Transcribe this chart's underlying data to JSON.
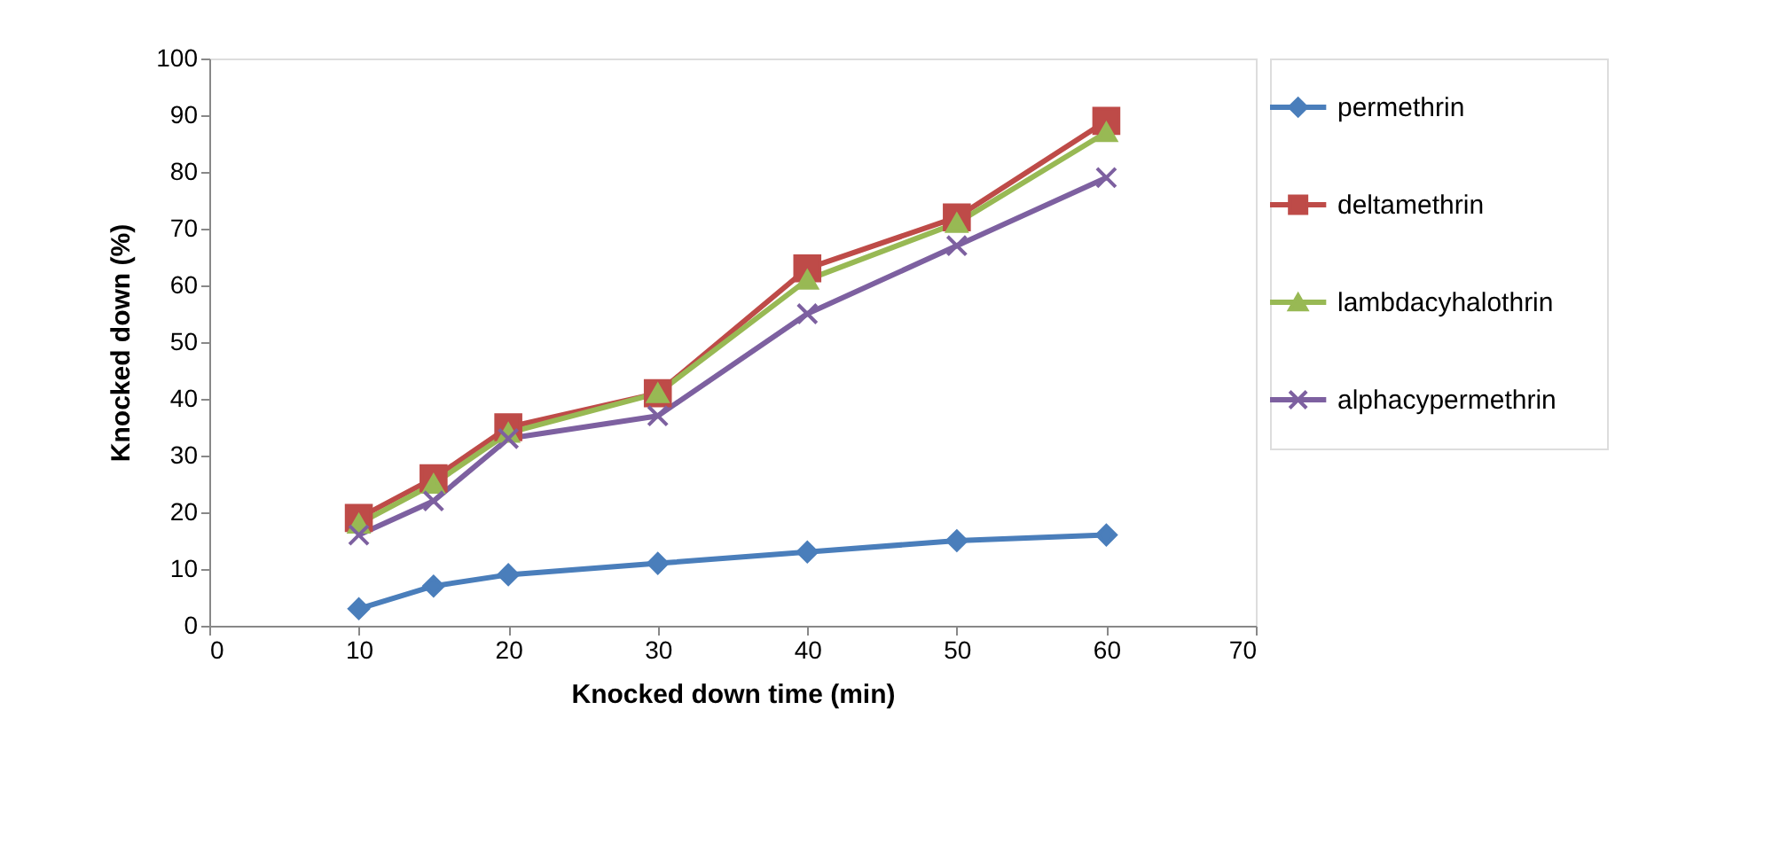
{
  "chart_data": {
    "type": "line",
    "xlabel": "Knocked down time (min)",
    "ylabel": "Knocked down (%)",
    "x": [
      10,
      15,
      20,
      30,
      40,
      50,
      60
    ],
    "xlim": [
      0,
      70
    ],
    "xticks": [
      0,
      10,
      20,
      30,
      40,
      50,
      60,
      70
    ],
    "ylim": [
      0,
      100
    ],
    "yticks": [
      0,
      10,
      20,
      30,
      40,
      50,
      60,
      70,
      80,
      90,
      100
    ],
    "grid": false,
    "legend": "right",
    "line_style": "solid",
    "series": [
      {
        "name": "permethrin",
        "color": "#4a7ebb",
        "marker": "diamond",
        "values": [
          3,
          7,
          9,
          11,
          13,
          15,
          16
        ]
      },
      {
        "name": "deltamethrin",
        "color": "#be4b48",
        "marker": "square",
        "values": [
          19,
          26,
          35,
          41,
          63,
          72,
          89
        ]
      },
      {
        "name": "lambdacyhalothrin",
        "color": "#98b954",
        "marker": "triangle",
        "values": [
          18,
          25,
          34,
          41,
          61,
          71,
          87
        ]
      },
      {
        "name": "alphacypermethrin",
        "color": "#7d60a0",
        "marker": "cross",
        "values": [
          16,
          22,
          33,
          37,
          55,
          67,
          79
        ]
      }
    ]
  }
}
